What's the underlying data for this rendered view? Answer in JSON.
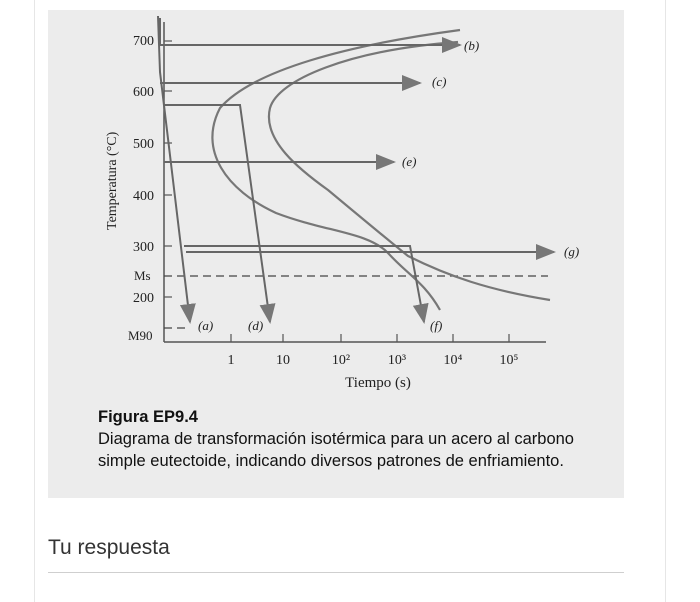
{
  "figure": {
    "axis": {
      "ylabel": "Temperatura (°C)",
      "xlabel": "Tiempo (s)",
      "y_ticks": [
        "700",
        "600",
        "500",
        "400",
        "300",
        "200"
      ],
      "x_ticks": [
        "1",
        "10",
        "10²",
        "10³",
        "10⁴",
        "10⁵"
      ],
      "ms_label": "Ms",
      "m90_label": "M90"
    },
    "path_labels": [
      "(a)",
      "(b)",
      "(c)",
      "(d)",
      "(e)",
      "(f)",
      "(g)"
    ],
    "caption_title": "Figura EP9.4",
    "caption_text": "Diagrama de transformación isotérmica para un acero al carbono simple eutectoide, indicando diversos patrones de enfriamiento."
  },
  "answer": {
    "label": "Tu respuesta"
  }
}
